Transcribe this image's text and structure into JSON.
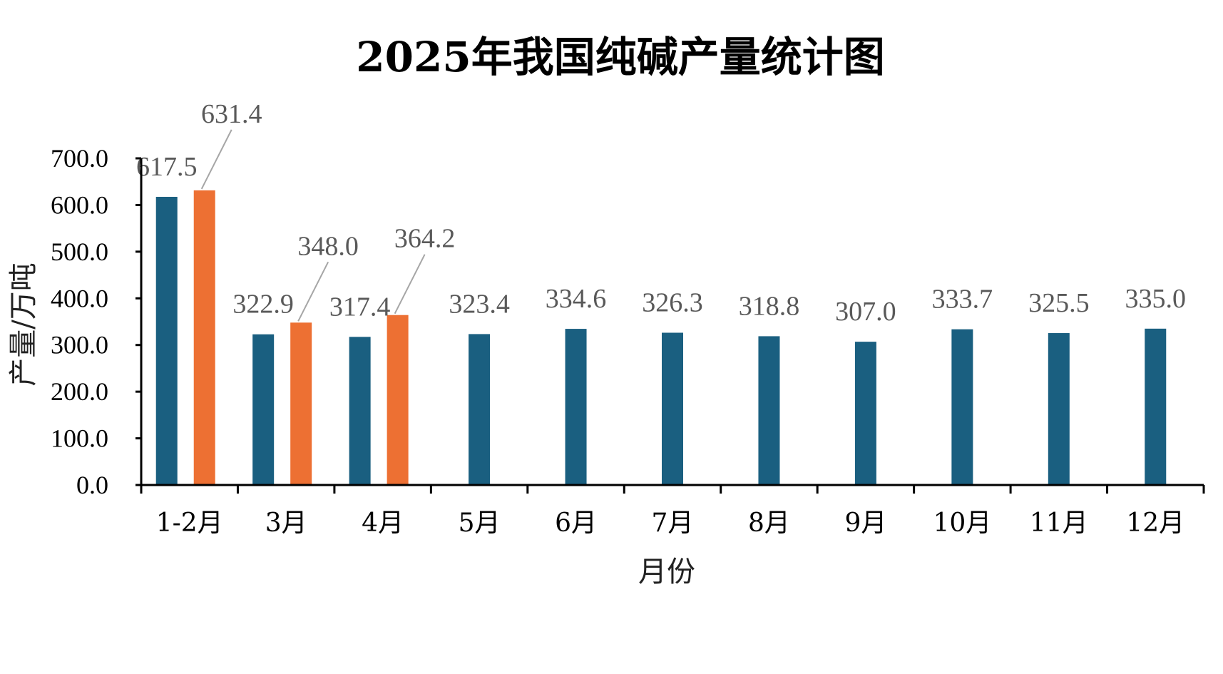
{
  "chart_data": {
    "type": "bar",
    "title": "2025年我国纯碱产量统计图",
    "xlabel": "月份",
    "ylabel": "产量/万吨",
    "ylim": [
      0,
      700
    ],
    "yticks": [
      "0.0",
      "100.0",
      "200.0",
      "300.0",
      "400.0",
      "500.0",
      "600.0",
      "700.0"
    ],
    "categories": [
      "1-2月",
      "3月",
      "4月",
      "5月",
      "6月",
      "7月",
      "8月",
      "9月",
      "10月",
      "11月",
      "12月"
    ],
    "grid": false,
    "series": [
      {
        "color": "#1a5f80",
        "values": [
          617.5,
          322.9,
          317.4,
          323.4,
          334.6,
          326.3,
          318.8,
          307.0,
          333.7,
          325.5,
          335.0
        ],
        "labels": [
          "617.5",
          "322.9",
          "317.4",
          "323.4",
          "334.6",
          "326.3",
          "318.8",
          "307.0",
          "333.7",
          "325.5",
          "335.0"
        ]
      },
      {
        "color": "#ed7033",
        "values": [
          631.4,
          348.0,
          364.2,
          null,
          null,
          null,
          null,
          null,
          null,
          null,
          null
        ],
        "labels": [
          "631.4",
          "348.0",
          "364.2",
          null,
          null,
          null,
          null,
          null,
          null,
          null,
          null
        ]
      }
    ]
  }
}
